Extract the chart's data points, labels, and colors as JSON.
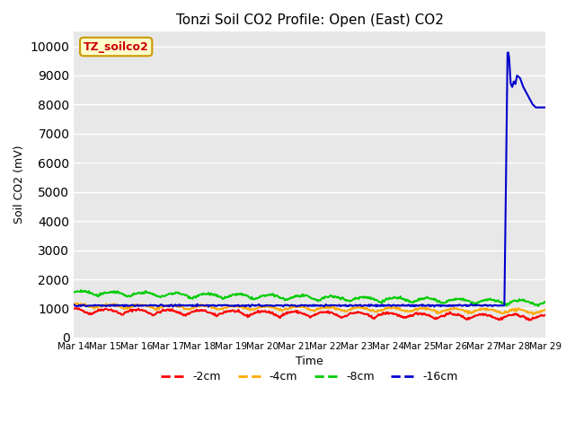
{
  "title": "Tonzi Soil CO2 Profile: Open (East) CO2",
  "ylabel": "Soil CO2 (mV)",
  "xlabel": "Time",
  "annotation_text": "TZ_soilco2",
  "annotation_color": "#cc0000",
  "annotation_bg": "#ffffcc",
  "annotation_border": "#cc9900",
  "ylim": [
    0,
    10500
  ],
  "yticks": [
    0,
    1000,
    2000,
    3000,
    4000,
    5000,
    6000,
    7000,
    8000,
    9000,
    10000
  ],
  "bg_color": "#e8e8e8",
  "fig_color": "#ffffff",
  "line_colors": {
    "-2cm": "#ff0000",
    "-4cm": "#ffaa00",
    "-8cm": "#00cc00",
    "-16cm": "#0000cc"
  },
  "legend_labels": [
    "-2cm",
    "-4cm",
    "-8cm",
    "-16cm"
  ],
  "x_tick_labels": [
    "Mar 14",
    "Mar 15",
    "Mar 16",
    "Mar 17",
    "Mar 18",
    "Mar 19",
    "Mar 20",
    "Mar 21",
    "Mar 22",
    "Mar 23",
    "Mar 24",
    "Mar 25",
    "Mar 26",
    "Mar 27",
    "Mar 28",
    "Mar 29"
  ],
  "grid_color": "#ffffff",
  "linewidth": 1.5,
  "blue_line_x": [
    13.5,
    13.6,
    13.7,
    13.8,
    13.85,
    13.9,
    13.95,
    14.0,
    14.05,
    14.1,
    14.2,
    14.3,
    14.4,
    14.5,
    14.6,
    14.7,
    14.8,
    14.9,
    15.0
  ],
  "blue_line_y": [
    1100,
    1100,
    1100,
    9950,
    9600,
    8700,
    8600,
    8800,
    8700,
    9000,
    8900,
    8600,
    8400,
    8200,
    8000,
    7900,
    7900,
    7900,
    7900
  ]
}
